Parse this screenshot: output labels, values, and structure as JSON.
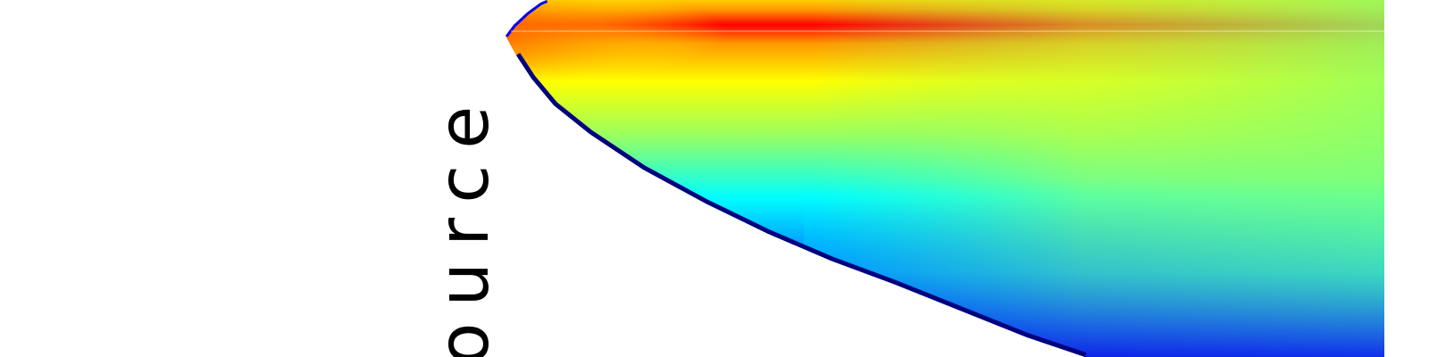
{
  "chart_data": {
    "type": "heatmap",
    "title": "",
    "xlabel": "",
    "ylabel": "Source",
    "visible_ylabel_fragment": "ource",
    "colormap": [
      "#00007f",
      "#0000ff",
      "#00ffff",
      "#7fff7f",
      "#ffff00",
      "#ff7f00",
      "#ff0000"
    ],
    "grid": false,
    "legend": "none"
  }
}
